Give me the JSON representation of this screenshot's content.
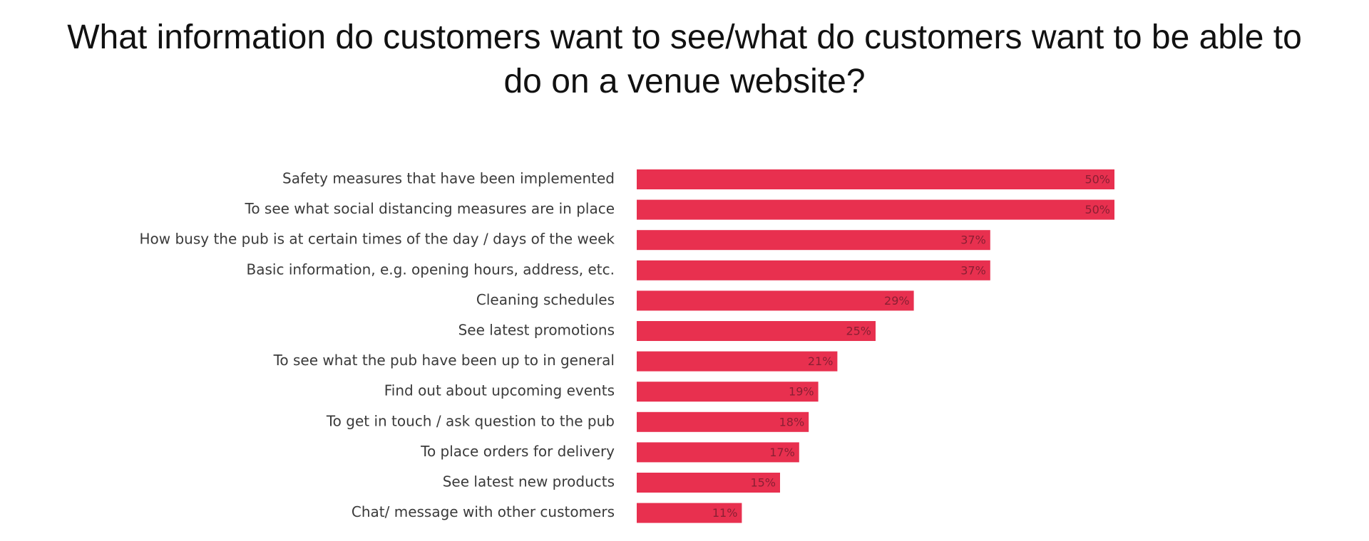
{
  "title_lines": [
    "What information do customers want to see/what do customers want to be able to",
    "do on a venue website?"
  ],
  "colors": {
    "bar": "#e8304f",
    "value_label": "#8a1f33",
    "category_label": "#3a3a3a",
    "title": "#111111"
  },
  "chart_data": {
    "type": "bar",
    "orientation": "horizontal",
    "title": "What information do customers want to see/what do customers want to be able to do on a venue website?",
    "xlabel": "",
    "ylabel": "",
    "xlim": [
      0,
      50
    ],
    "grid": false,
    "legend": "none",
    "categories": [
      "Safety measures that have been implemented",
      "To see what social distancing measures are in place",
      "How busy the pub is at certain times of the day / days of the week",
      "Basic information, e.g. opening hours, address, etc.",
      "Cleaning schedules",
      "See latest promotions",
      "To see what the pub have been up to in general",
      "Find out about upcoming events",
      "To get in touch / ask question to the pub",
      "To place orders for delivery",
      "See latest new products",
      "Chat/ message with other customers"
    ],
    "values": [
      50,
      50,
      37,
      37,
      29,
      25,
      21,
      19,
      18,
      17,
      15,
      11
    ],
    "value_labels": [
      "50%",
      "50%",
      "37%",
      "37%",
      "29%",
      "25%",
      "21%",
      "19%",
      "18%",
      "17%",
      "15%",
      "11%"
    ]
  }
}
